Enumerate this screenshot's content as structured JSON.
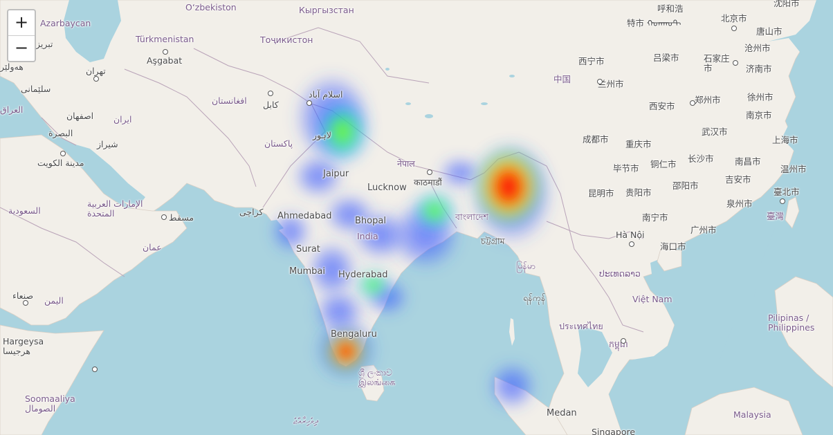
{
  "map": {
    "zoom_in_label": "+",
    "zoom_out_label": "−",
    "colors": {
      "ocean": "#aad3df",
      "land": "#f2efe9",
      "border": "#b9a3b8",
      "heat_low": "#3b5bff",
      "heat_mid": "#00ff40",
      "heat_high": "#ff0000"
    },
    "labels": [
      {
        "id": "azerbaycan",
        "text": "Azarbaycan",
        "cls": "country"
      },
      {
        "id": "ozbekiston",
        "text": "O‘zbekiston",
        "cls": "country"
      },
      {
        "id": "kyrgyzstan",
        "text": "Кыргызстан",
        "cls": "country"
      },
      {
        "id": "hohhot",
        "text": "呼和浩",
        "cls": ""
      },
      {
        "id": "beijing",
        "text": "北京市",
        "cls": ""
      },
      {
        "id": "shenyang",
        "text": "沈阳市",
        "cls": ""
      },
      {
        "id": "tebriz",
        "text": "تبريز",
        "cls": ""
      },
      {
        "id": "turkmenistan",
        "text": "Türkmenistan",
        "cls": "country"
      },
      {
        "id": "tojikiston",
        "text": "Тоҷикистон",
        "cls": "country"
      },
      {
        "id": "ashgabat",
        "text": "Aşgabat",
        "cls": ""
      },
      {
        "id": "tangshan",
        "text": "唐山市",
        "cls": ""
      },
      {
        "id": "tianjin",
        "text": "特市 ᠬᠣᠬᠬᠣᠲ",
        "cls": ""
      },
      {
        "id": "cangzhou",
        "text": "沧州市",
        "cls": ""
      },
      {
        "id": "hawler",
        "text": "هەولێر",
        "cls": ""
      },
      {
        "id": "tehran",
        "text": "تهران",
        "cls": ""
      },
      {
        "id": "xining",
        "text": "西宁市",
        "cls": ""
      },
      {
        "id": "luliang",
        "text": "吕梁市",
        "cls": ""
      },
      {
        "id": "shijiazhuang",
        "text": "石家庄\n市",
        "cls": ""
      },
      {
        "id": "jinan",
        "text": "济南市",
        "cls": ""
      },
      {
        "id": "sulaymaniyah",
        "text": "سلێمانی",
        "cls": ""
      },
      {
        "id": "zhongguo",
        "text": "中国",
        "cls": "country"
      },
      {
        "id": "lanzhou",
        "text": "兰州市",
        "cls": ""
      },
      {
        "id": "islamabad",
        "text": "اسلام آباد",
        "cls": ""
      },
      {
        "id": "afghanistan",
        "text": "افغانستان",
        "cls": "country"
      },
      {
        "id": "kabul",
        "text": "کابل",
        "cls": ""
      },
      {
        "id": "xuzhou",
        "text": "徐州市",
        "cls": ""
      },
      {
        "id": "iraq",
        "text": "العراق",
        "cls": "country"
      },
      {
        "id": "isfahan",
        "text": "اصفهان",
        "cls": ""
      },
      {
        "id": "iran",
        "text": "ایران",
        "cls": "country"
      },
      {
        "id": "xian",
        "text": "西安市",
        "cls": ""
      },
      {
        "id": "zhengzhou",
        "text": "郑州市",
        "cls": ""
      },
      {
        "id": "nanjing",
        "text": "南京市",
        "cls": ""
      },
      {
        "id": "basra",
        "text": "البصرة",
        "cls": ""
      },
      {
        "id": "shiraz",
        "text": "شیراز",
        "cls": ""
      },
      {
        "id": "lahore",
        "text": "لاہور",
        "cls": ""
      },
      {
        "id": "wuhan",
        "text": "武汉市",
        "cls": ""
      },
      {
        "id": "chengdu",
        "text": "成都市",
        "cls": ""
      },
      {
        "id": "shanghai",
        "text": "上海市",
        "cls": ""
      },
      {
        "id": "kuwait",
        "text": "مدينة الكويت",
        "cls": ""
      },
      {
        "id": "pakistan",
        "text": "پاکستان",
        "cls": "country"
      },
      {
        "id": "chongqing",
        "text": "重庆市",
        "cls": ""
      },
      {
        "id": "nepal",
        "text": "नेपाल",
        "cls": "country"
      },
      {
        "id": "bijie",
        "text": "毕节市",
        "cls": ""
      },
      {
        "id": "tongren",
        "text": "铜仁市",
        "cls": ""
      },
      {
        "id": "changsha",
        "text": "长沙市",
        "cls": ""
      },
      {
        "id": "nanchang",
        "text": "南昌市",
        "cls": ""
      },
      {
        "id": "wenzhou",
        "text": "温州市",
        "cls": ""
      },
      {
        "id": "jaipur",
        "text": "Jaipur",
        "cls": "big"
      },
      {
        "id": "kathmandu",
        "text": "काठमाडौं",
        "cls": ""
      },
      {
        "id": "lucknow",
        "text": "Lucknow",
        "cls": "big"
      },
      {
        "id": "kunming",
        "text": "昆明市",
        "cls": ""
      },
      {
        "id": "guiyang",
        "text": "贵阳市",
        "cls": ""
      },
      {
        "id": "shaoyang",
        "text": "邵阳市",
        "cls": ""
      },
      {
        "id": "jian",
        "text": "吉安市",
        "cls": ""
      },
      {
        "id": "taibei",
        "text": "臺北市",
        "cls": ""
      },
      {
        "id": "quanzhou",
        "text": "泉州市",
        "cls": ""
      },
      {
        "id": "saudi",
        "text": "السعودية",
        "cls": "country"
      },
      {
        "id": "uae",
        "text": "الإمارات العربية\nالمتحدة",
        "cls": "country"
      },
      {
        "id": "muscat",
        "text": "مسقط",
        "cls": ""
      },
      {
        "id": "karachi",
        "text": "کراچی",
        "cls": ""
      },
      {
        "id": "ahmedabad",
        "text": "Ahmedabad",
        "cls": "big"
      },
      {
        "id": "bhopal",
        "text": "Bhopal",
        "cls": "big"
      },
      {
        "id": "bangladesh",
        "text": "বাংলাদেশ",
        "cls": "country"
      },
      {
        "id": "taiwan",
        "text": "臺灣",
        "cls": "country"
      },
      {
        "id": "nanning",
        "text": "南宁市",
        "cls": ""
      },
      {
        "id": "guangzhou",
        "text": "广州市",
        "cls": ""
      },
      {
        "id": "oman",
        "text": "عمان",
        "cls": "country"
      },
      {
        "id": "india",
        "text": "India",
        "cls": "country"
      },
      {
        "id": "hanoi",
        "text": "Hà Nội",
        "cls": ""
      },
      {
        "id": "chittagong",
        "text": "চট্টগ্রাম",
        "cls": ""
      },
      {
        "id": "surat",
        "text": "Surat",
        "cls": "big"
      },
      {
        "id": "haikou",
        "text": "海口市",
        "cls": ""
      },
      {
        "id": "myanmar",
        "text": "မြန်မာ",
        "cls": "country"
      },
      {
        "id": "mumbai",
        "text": "Mumbai",
        "cls": "big"
      },
      {
        "id": "laos",
        "text": "ປະເທດລາວ",
        "cls": "country"
      },
      {
        "id": "hyderabad",
        "text": "Hyderabad",
        "cls": "big"
      },
      {
        "id": "sanaa",
        "text": "صنعاء",
        "cls": ""
      },
      {
        "id": "yemen",
        "text": "اليمن",
        "cls": "country"
      },
      {
        "id": "yangon",
        "text": "ရန်ကုန်",
        "cls": ""
      },
      {
        "id": "vietnam",
        "text": "Việt Nam",
        "cls": "country"
      },
      {
        "id": "philippines",
        "text": "Pilipinas /\nPhilippines",
        "cls": "country"
      },
      {
        "id": "thailand",
        "text": "ประเทศไทย",
        "cls": "country"
      },
      {
        "id": "bengaluru",
        "text": "Bengaluru",
        "cls": "big"
      },
      {
        "id": "hargeysa",
        "text": "Hargeysa\nهرجيسا",
        "cls": ""
      },
      {
        "id": "cambodia",
        "text": "កម្ពុជា",
        "cls": "country"
      },
      {
        "id": "srilanka",
        "text": "ශ්‍රී ලංකාව\nஇலங்கை",
        "cls": "country"
      },
      {
        "id": "somalia",
        "text": "Soomaaliya\nالصومال",
        "cls": "country"
      },
      {
        "id": "maldives",
        "text": "ދިވެހިރާއްޖެ",
        "cls": "country"
      },
      {
        "id": "medan",
        "text": "Medan",
        "cls": "big"
      },
      {
        "id": "malaysia",
        "text": "Malaysia",
        "cls": "country"
      },
      {
        "id": "singapore",
        "text": "Singapore",
        "cls": ""
      }
    ]
  }
}
